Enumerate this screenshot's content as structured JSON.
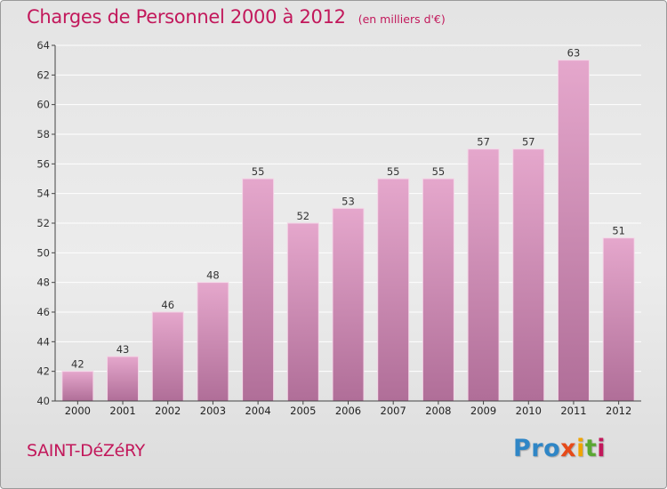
{
  "header": {
    "title": "Charges de Personnel 2000 à 2012",
    "subtitle": "(en milliers d'€)"
  },
  "footer": {
    "commune": "SAINT-DéZéRY",
    "logo": [
      "Pro",
      "x",
      "i",
      "t",
      "i"
    ]
  },
  "colors": {
    "title": "#c2185b",
    "bar_top": "#e5a7cc",
    "bar_bottom": "#b06e98",
    "grid": "#ffffff"
  },
  "chart_data": {
    "type": "bar",
    "categories": [
      "2000",
      "2001",
      "2002",
      "2003",
      "2004",
      "2005",
      "2006",
      "2007",
      "2008",
      "2009",
      "2010",
      "2011",
      "2012"
    ],
    "values": [
      42,
      43,
      46,
      48,
      55,
      52,
      53,
      55,
      55,
      57,
      57,
      63,
      51
    ],
    "ylim": [
      40,
      64
    ],
    "yticks": [
      40,
      42,
      44,
      46,
      48,
      50,
      52,
      54,
      56,
      58,
      60,
      62,
      64
    ],
    "grid": true,
    "data_labels": true
  }
}
